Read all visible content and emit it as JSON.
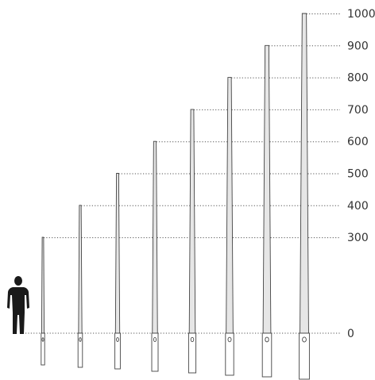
{
  "diagram": {
    "scale_labels": [
      "0",
      "300",
      "400",
      "500",
      "600",
      "700",
      "800",
      "900",
      "1000"
    ],
    "poles": [
      {
        "height": 300
      },
      {
        "height": 400
      },
      {
        "height": 500
      },
      {
        "height": 600
      },
      {
        "height": 700
      },
      {
        "height": 800
      },
      {
        "height": 900
      },
      {
        "height": 1000
      }
    ],
    "colors": {
      "pole_fill": "#e6e6e6",
      "pole_stroke": "#444444",
      "guide_line": "#555555",
      "silhouette": "#1a1a1a",
      "text": "#333333"
    },
    "icons": [
      "person-silhouette-icon"
    ]
  }
}
